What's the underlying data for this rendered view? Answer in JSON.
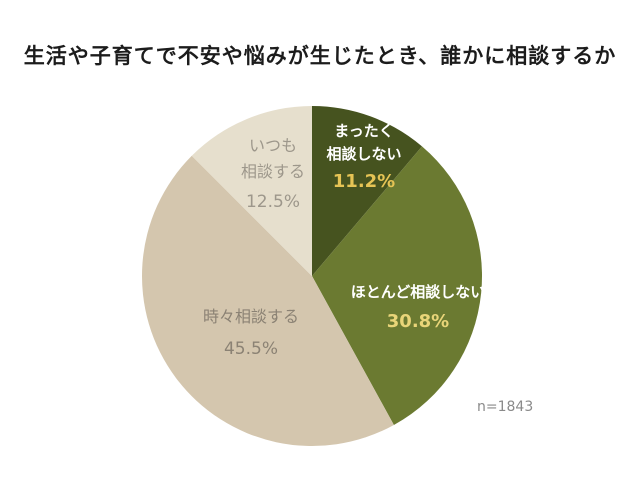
{
  "chart_data": {
    "type": "pie",
    "title": "生活や子育てで不安や悩みが生じたとき、誰かに相談するか",
    "annotation": "n=1843",
    "legend_position": "none",
    "background": "#ffffff",
    "start_angle_deg": 0,
    "direction": "clockwise",
    "slices": [
      {
        "label": "まったく相談しない",
        "label_lines": [
          "まったく",
          "相談しない"
        ],
        "value": 11.2,
        "pct_label": "11.2%",
        "color": "#46531f",
        "label_color": "#ffffff",
        "pct_color": "#e6c455"
      },
      {
        "label": "ほとんど相談しない",
        "label_lines": [
          "ほとんど相談しない"
        ],
        "value": 30.8,
        "pct_label": "30.8%",
        "color": "#6b7a31",
        "label_color": "#ffffff",
        "pct_color": "#e9d579"
      },
      {
        "label": "時々相談する",
        "label_lines": [
          "時々相談する"
        ],
        "value": 45.5,
        "pct_label": "45.5%",
        "color": "#d4c6ae",
        "label_color": "#8b8274",
        "pct_color": "#8b8274"
      },
      {
        "label": "いつも相談する",
        "label_lines": [
          "いつも",
          "相談する"
        ],
        "value": 12.5,
        "pct_label": "12.5%",
        "color": "#e6dfcd",
        "label_color": "#9d978b",
        "pct_color": "#9d978b"
      }
    ]
  }
}
